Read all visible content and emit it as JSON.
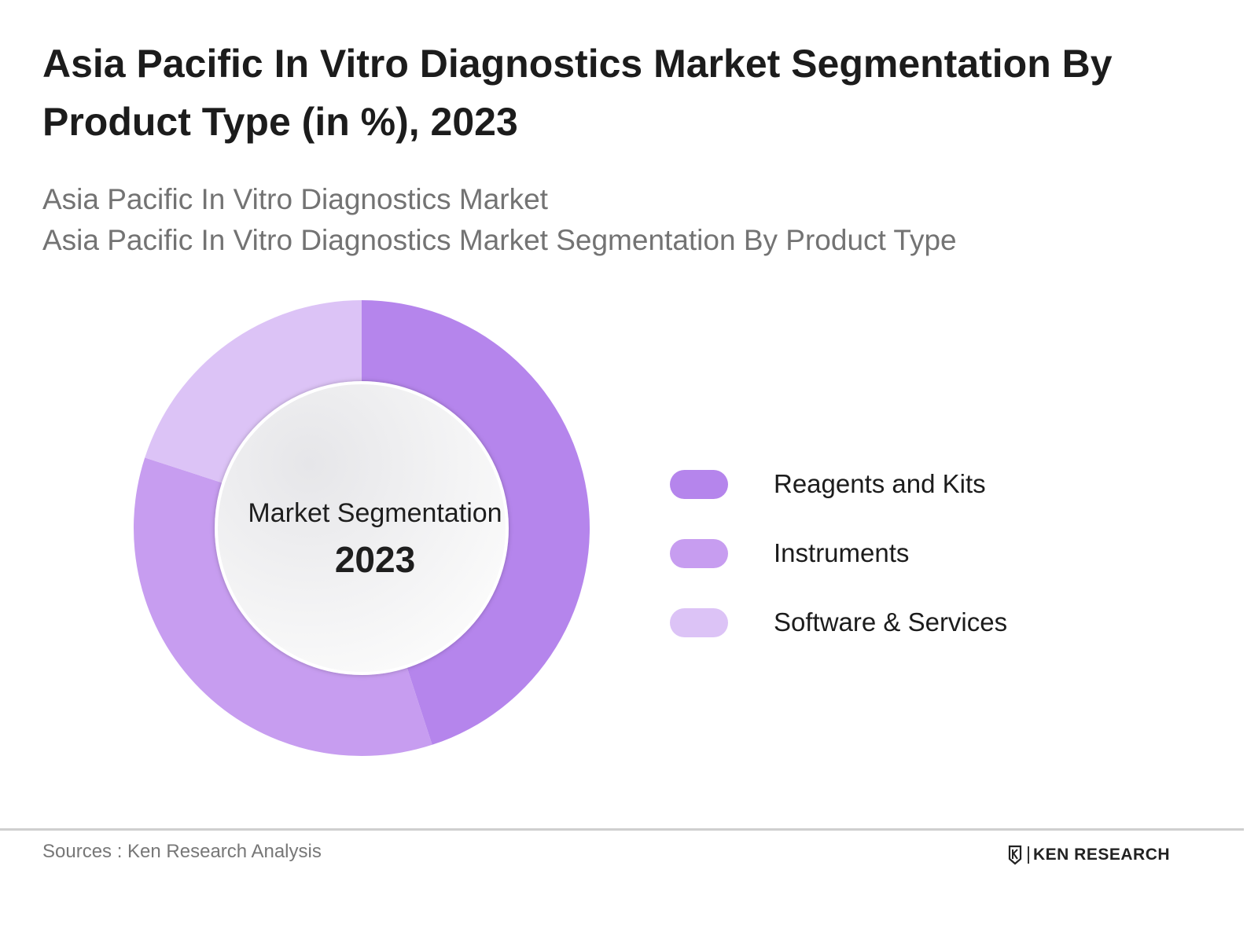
{
  "header": {
    "title": "Asia Pacific In Vitro Diagnostics Market Segmentation By Product Type (in %), 2023",
    "subtitle_line1": "Asia Pacific In Vitro Diagnostics Market",
    "subtitle_line2": "Asia Pacific In Vitro Diagnostics Market Segmentation By Product Type"
  },
  "center": {
    "label": "Market Segmentation",
    "year": "2023"
  },
  "chart_data": {
    "type": "pie",
    "title": "Asia Pacific In Vitro Diagnostics Market Segmentation By Product Type (in %), 2023",
    "categories": [
      "Reagents and Kits",
      "Instruments",
      "Software & Services"
    ],
    "values": [
      45,
      35,
      20
    ],
    "colors": [
      "#b585ec",
      "#c79df0",
      "#dcc3f6"
    ],
    "legend_position": "right"
  },
  "legend": {
    "items": [
      {
        "label": "Reagents and Kits",
        "color": "#b585ec"
      },
      {
        "label": "Instruments",
        "color": "#c79df0"
      },
      {
        "label": "Software & Services",
        "color": "#dcc3f6"
      }
    ]
  },
  "footer": {
    "sources": "Sources : Ken Research Analysis",
    "logo_text": "KEN RESEARCH"
  }
}
